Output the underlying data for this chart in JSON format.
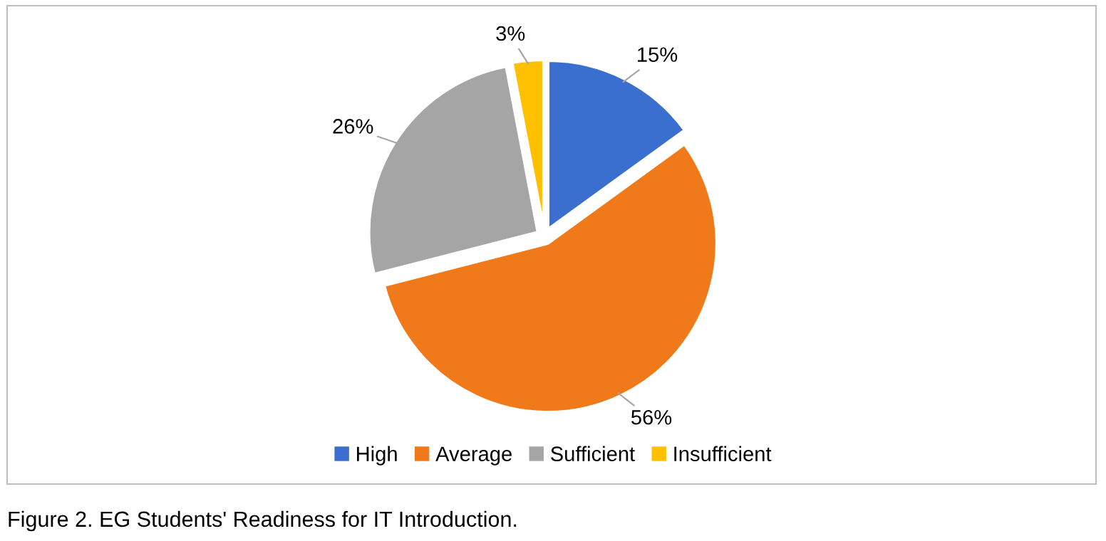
{
  "chart_data": {
    "type": "pie",
    "categories": [
      "High",
      "Average",
      "Sufficient",
      "Insufficient"
    ],
    "values": [
      15,
      56,
      26,
      3
    ],
    "colors": [
      "#3a6fd0",
      "#f07a1a",
      "#a5a5a5",
      "#ffc000"
    ],
    "value_labels": [
      "15%",
      "56%",
      "26%",
      "3%"
    ],
    "legend": "bottom",
    "annotations": [
      "Figure 2. EG Students' Readiness for IT Introduction."
    ]
  }
}
